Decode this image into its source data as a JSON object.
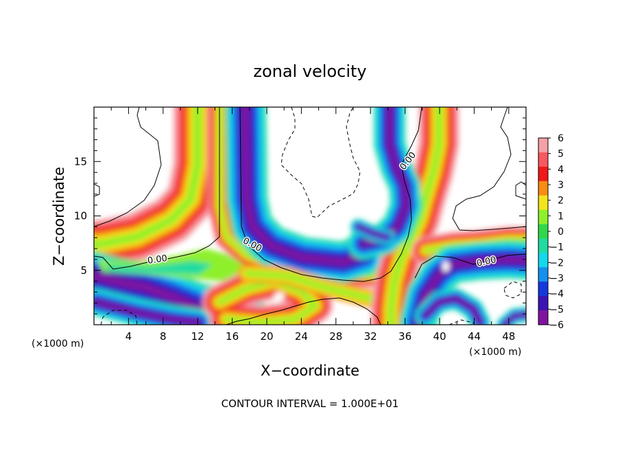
{
  "chart_data": {
    "type": "heatmap",
    "title": "zonal velocity",
    "xlabel": "X−coordinate",
    "ylabel": "Z−coordinate",
    "x_unit_label": "(×1000 m)",
    "x_unit_label_right": "(×1000 m)",
    "xlim": [
      0,
      50
    ],
    "ylim": [
      0,
      20
    ],
    "x_ticks": [
      "4",
      "8",
      "12",
      "16",
      "20",
      "24",
      "28",
      "32",
      "36",
      "40",
      "44",
      "48"
    ],
    "y_ticks": [
      "5",
      "10",
      "15"
    ],
    "colorbar": {
      "labels": [
        "6",
        "5",
        "4",
        "3",
        "2",
        "1",
        "0",
        "−1",
        "−2",
        "−3",
        "−4",
        "−5",
        "−6"
      ],
      "values": [
        6,
        5,
        4,
        3,
        2,
        1,
        0,
        -1,
        -2,
        -3,
        -4,
        -5,
        -6
      ],
      "colors": [
        "#f4a0a6",
        "#f85860",
        "#f01818",
        "#f88c14",
        "#f2e41c",
        "#8ef02a",
        "#30d84a",
        "#20dca0",
        "#14d8ec",
        "#1490ee",
        "#1438dc",
        "#3c14b4",
        "#8014a0"
      ]
    },
    "contour_labels": [
      "0.00",
      "0.00",
      "0.00",
      "0.00"
    ],
    "footer": "CONTOUR INTERVAL = 1.000E+01"
  }
}
